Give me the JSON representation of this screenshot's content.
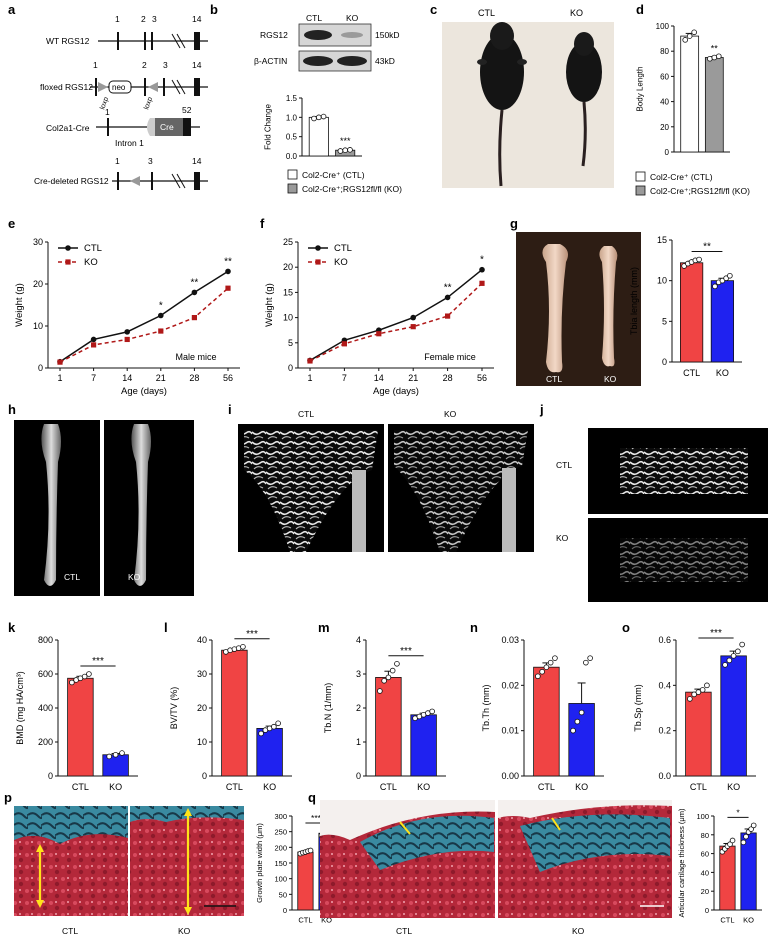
{
  "panels": {
    "a": {
      "letter": "a",
      "rows": [
        {
          "label": "WT RGS12",
          "nums": [
            "1",
            "2",
            "3",
            "14"
          ]
        },
        {
          "label": "floxed RGS12",
          "nums": [
            "1",
            "2",
            "3",
            "14"
          ],
          "neo": "neo",
          "loxp": "loxp"
        },
        {
          "label": "Col2a1-Cre",
          "nums": [
            "1",
            "52"
          ],
          "intron": "Intron 1",
          "cre": "Cre"
        },
        {
          "label": "Cre-deleted RGS12",
          "nums": [
            "1",
            "3",
            "14"
          ]
        }
      ]
    },
    "b": {
      "letter": "b",
      "lanes": [
        "CTL",
        "KO"
      ],
      "bands": [
        {
          "name": "RGS12",
          "size": "150kD"
        },
        {
          "name": "β-ACTIN",
          "size": "43kD"
        }
      ],
      "ylabel": "Fold Change",
      "yticks": [
        "0.0",
        "0.5",
        "1.0",
        "1.5"
      ],
      "sig": "***",
      "legend": [
        "Col2-Cre⁺ (CTL)",
        "Col2-Cre⁺;RGS12fl/fl (KO)"
      ]
    },
    "c": {
      "letter": "c",
      "labels": [
        "CTL",
        "KO"
      ]
    },
    "d": {
      "letter": "d",
      "ylabel": "Body Length",
      "yticks": [
        "0",
        "20",
        "40",
        "60",
        "80",
        "100"
      ],
      "sig": "**",
      "legend": [
        "Col2-Cre⁺ (CTL)",
        "Col2-Cre⁺;RGS12fl/fl (KO)"
      ]
    },
    "e": {
      "letter": "e",
      "ylabel": "Weight (g)",
      "xlabel": "Age (days)",
      "note": "Male mice",
      "series": [
        "CTL",
        "KO"
      ],
      "yticks": [
        "0",
        "10",
        "20",
        "30"
      ],
      "sigs": [
        "*",
        "**",
        "**"
      ]
    },
    "f": {
      "letter": "f",
      "ylabel": "Weight (g)",
      "xlabel": "Age (days)",
      "note": "Female mice",
      "series": [
        "CTL",
        "KO"
      ],
      "yticks": [
        "0",
        "5",
        "10",
        "15",
        "20",
        "25"
      ],
      "sigs": [
        "**",
        "*"
      ]
    },
    "g": {
      "letter": "g",
      "labels": [
        "CTL",
        "KO"
      ],
      "ylabel": "Tbia length (mm)",
      "yticks": [
        "0",
        "5",
        "10",
        "15"
      ],
      "sig": "**"
    },
    "h": {
      "letter": "h",
      "labels": [
        "CTL",
        "KO"
      ]
    },
    "i": {
      "letter": "i",
      "labels": [
        "CTL",
        "KO"
      ]
    },
    "j": {
      "letter": "j",
      "labels": [
        "CTL",
        "KO"
      ]
    },
    "k": {
      "letter": "k",
      "ylabel": "BMD (mg HA/cm³)",
      "yticks": [
        "0",
        "200",
        "400",
        "600",
        "800"
      ],
      "sig": "***"
    },
    "l": {
      "letter": "l",
      "ylabel": "BV/TV (%)",
      "yticks": [
        "0",
        "10",
        "20",
        "30",
        "40"
      ],
      "sig": "***"
    },
    "m": {
      "letter": "m",
      "ylabel": "Tb.N (1/mm)",
      "yticks": [
        "0",
        "1",
        "2",
        "3",
        "4"
      ],
      "sig": "***"
    },
    "n": {
      "letter": "n",
      "ylabel": "Tb.Th (mm)",
      "yticks": [
        "0.00",
        "0.01",
        "0.02",
        "0.03"
      ],
      "sig": ""
    },
    "o": {
      "letter": "o",
      "ylabel": "Tb.Sp (mm)",
      "yticks": [
        "0.0",
        "0.2",
        "0.4",
        "0.6"
      ],
      "sig": "***"
    },
    "p": {
      "letter": "p",
      "labels": [
        "CTL",
        "KO"
      ],
      "ylabel": "Growth plate width (μm)",
      "yticks": [
        "0",
        "50",
        "100",
        "150",
        "200",
        "250",
        "300"
      ],
      "sig": "***"
    },
    "q": {
      "letter": "q",
      "labels": [
        "CTL",
        "KO"
      ],
      "ylabel": "Articular cartilage thickness (μm)",
      "yticks": [
        "0",
        "20",
        "40",
        "60",
        "80",
        "100"
      ],
      "sig": "*"
    }
  },
  "categories": [
    "CTL",
    "KO"
  ],
  "colors": {
    "ctl_bar": "#f04444",
    "ko_bar": "#1f22f0",
    "ctl_line": "#111111",
    "ko_line": "#b01818"
  },
  "chart_data": [
    {
      "id": "b",
      "type": "bar",
      "categories": [
        "CTL",
        "KO"
      ],
      "values": [
        1.0,
        0.15
      ],
      "ylim": [
        0,
        1.5
      ],
      "ylabel": "Fold Change",
      "points": [
        [
          0.97,
          1.0,
          1.02
        ],
        [
          0.13,
          0.15,
          0.16
        ]
      ]
    },
    {
      "id": "d",
      "type": "bar",
      "categories": [
        "CTL",
        "KO"
      ],
      "values": [
        92,
        75
      ],
      "ylim": [
        0,
        100
      ],
      "ylabel": "Body Length",
      "points": [
        [
          89,
          92,
          95
        ],
        [
          74,
          75,
          76
        ]
      ]
    },
    {
      "id": "e",
      "type": "line",
      "x": [
        "1",
        "7",
        "14",
        "21",
        "28",
        "56"
      ],
      "ylim": [
        0,
        30
      ],
      "series": [
        {
          "name": "CTL",
          "values": [
            1.5,
            6.8,
            8.6,
            12.5,
            18,
            23
          ]
        },
        {
          "name": "KO",
          "values": [
            1.4,
            5.5,
            6.8,
            8.8,
            12,
            19
          ]
        }
      ]
    },
    {
      "id": "f",
      "type": "line",
      "x": [
        "1",
        "7",
        "14",
        "21",
        "28",
        "56"
      ],
      "ylim": [
        0,
        25
      ],
      "series": [
        {
          "name": "CTL",
          "values": [
            1.5,
            5.5,
            7.5,
            10,
            14,
            19.5
          ]
        },
        {
          "name": "KO",
          "values": [
            1.4,
            4.8,
            6.8,
            8.2,
            10.3,
            16.8
          ]
        }
      ]
    },
    {
      "id": "g",
      "type": "bar",
      "categories": [
        "CTL",
        "KO"
      ],
      "values": [
        12.2,
        10
      ],
      "ylim": [
        0,
        15
      ],
      "ylabel": "Tbia length (mm)",
      "points": [
        [
          11.8,
          12.1,
          12.3,
          12.5,
          12.6
        ],
        [
          9.3,
          9.8,
          10,
          10.3,
          10.6
        ]
      ]
    },
    {
      "id": "k",
      "type": "bar",
      "categories": [
        "CTL",
        "KO"
      ],
      "values": [
        575,
        125
      ],
      "ylim": [
        0,
        800
      ],
      "ylabel": "BMD (mg HA/cm³)",
      "points": [
        [
          550,
          565,
          575,
          585,
          600
        ],
        [
          115,
          125,
          135
        ]
      ]
    },
    {
      "id": "l",
      "type": "bar",
      "categories": [
        "CTL",
        "KO"
      ],
      "values": [
        37,
        14
      ],
      "ylim": [
        0,
        40
      ],
      "ylabel": "BV/TV (%)",
      "points": [
        [
          36.5,
          37,
          37.3,
          37.6,
          38
        ],
        [
          12.5,
          13.5,
          14,
          14.5,
          15.5
        ]
      ]
    },
    {
      "id": "m",
      "type": "bar",
      "categories": [
        "CTL",
        "KO"
      ],
      "values": [
        2.9,
        1.8
      ],
      "ylim": [
        0,
        4
      ],
      "ylabel": "Tb.N (1/mm)",
      "points": [
        [
          2.5,
          2.8,
          2.9,
          3.1,
          3.3
        ],
        [
          1.7,
          1.75,
          1.8,
          1.85,
          1.9
        ]
      ]
    },
    {
      "id": "n",
      "type": "bar",
      "categories": [
        "CTL",
        "KO"
      ],
      "values": [
        0.024,
        0.016
      ],
      "ylim": [
        0,
        0.03
      ],
      "ylabel": "Tb.Th (mm)",
      "points": [
        [
          0.022,
          0.023,
          0.024,
          0.025,
          0.026
        ],
        [
          0.01,
          0.012,
          0.014,
          0.025,
          0.026
        ]
      ]
    },
    {
      "id": "o",
      "type": "bar",
      "categories": [
        "CTL",
        "KO"
      ],
      "values": [
        0.37,
        0.53
      ],
      "ylim": [
        0,
        0.6
      ],
      "ylabel": "Tb.Sp (mm)",
      "points": [
        [
          0.34,
          0.36,
          0.37,
          0.38,
          0.4
        ],
        [
          0.49,
          0.51,
          0.53,
          0.55,
          0.58
        ]
      ]
    },
    {
      "id": "p",
      "type": "bar",
      "categories": [
        "CTL",
        "KO"
      ],
      "values": [
        185,
        245
      ],
      "ylim": [
        0,
        300
      ],
      "ylabel": "Growth plate width (μm)",
      "points": [
        [
          180,
          183,
          185,
          188,
          190
        ],
        [
          238,
          242,
          245,
          248,
          252
        ]
      ]
    },
    {
      "id": "q",
      "type": "bar",
      "categories": [
        "CTL",
        "KO"
      ],
      "values": [
        68,
        82
      ],
      "ylim": [
        0,
        100
      ],
      "ylabel": "Articular cartilage thickness (μm)",
      "points": [
        [
          62,
          65,
          68,
          70,
          74
        ],
        [
          72,
          78,
          83,
          86,
          90
        ]
      ]
    }
  ]
}
